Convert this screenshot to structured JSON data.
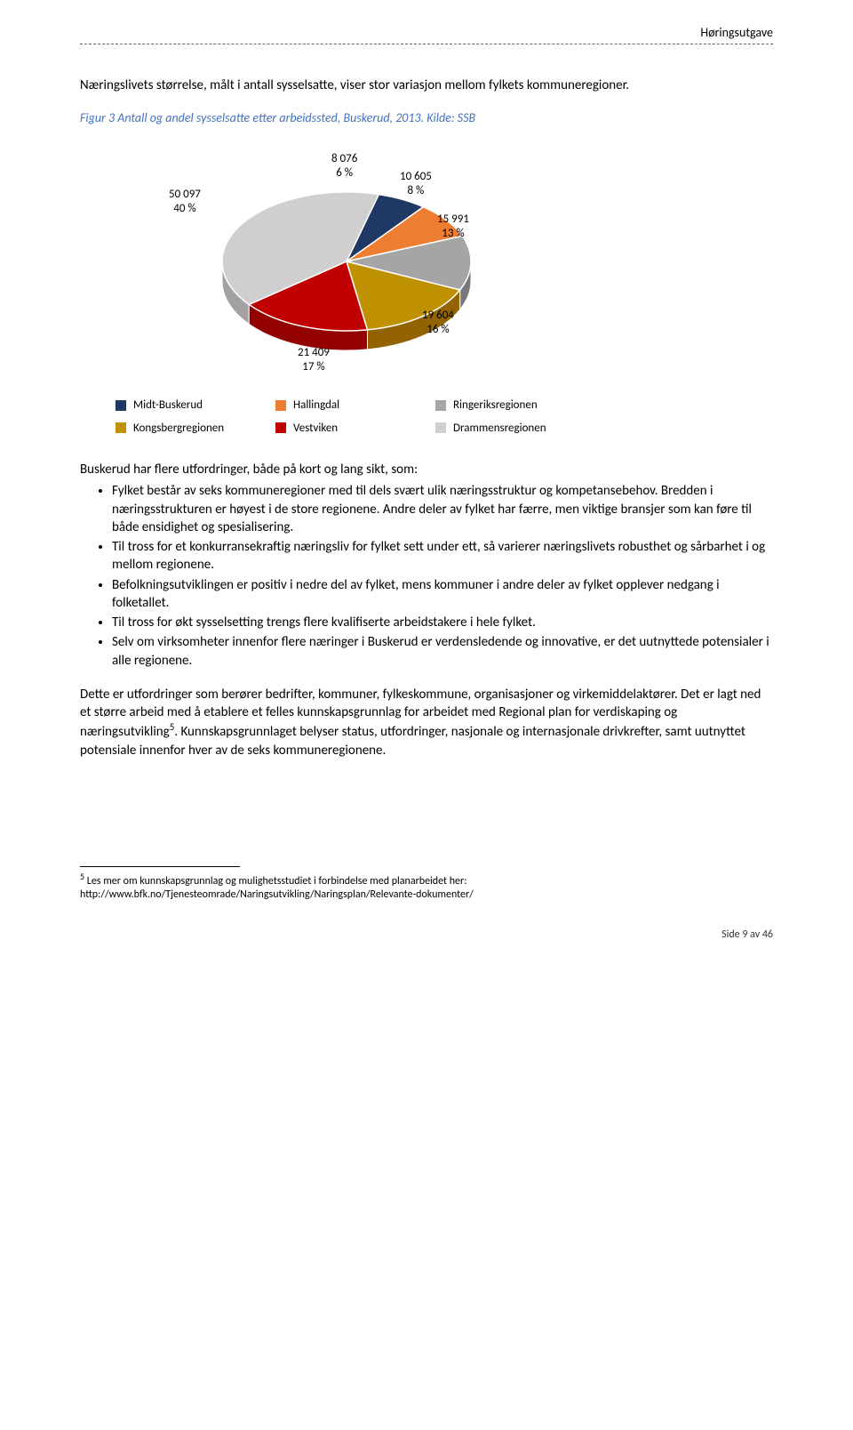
{
  "header": {
    "label": "Høringsutgave"
  },
  "intro": "Næringslivets størrelse, målt i antall sysselsatte, viser stor variasjon mellom fylkets kommuneregioner.",
  "caption": "Figur 3 Antall og andel sysselsatte etter arbeidssted, Buskerud, 2013. Kilde: SSB",
  "chart": {
    "type": "pie",
    "background_color": "#ffffff",
    "label_fontsize": 13,
    "slices": [
      {
        "name": "Midt-Buskerud",
        "value": 8076,
        "pct": 6,
        "color": "#1f3864"
      },
      {
        "name": "Hallingdal",
        "value": 10605,
        "pct": 8,
        "color": "#ed7d31"
      },
      {
        "name": "Ringeriksregionen",
        "value": 15991,
        "pct": 13,
        "color": "#a5a5a5"
      },
      {
        "name": "Kongsbergregionen",
        "value": 19604,
        "pct": 16,
        "color": "#bf9000"
      },
      {
        "name": "Vestviken",
        "value": 21409,
        "pct": 17,
        "color": "#c00000"
      },
      {
        "name": "Drammensregionen",
        "value": 50097,
        "pct": 40,
        "color": "#d0cece"
      }
    ],
    "labels": {
      "l0": "8 076\n6 %",
      "l1": "10 605\n8 %",
      "l2": "15 991\n13 %",
      "l3": "19 604\n16 %",
      "l4": "21 409\n17 %",
      "l5": "50 097\n40 %"
    },
    "legend_order": [
      0,
      1,
      2,
      3,
      4,
      5
    ]
  },
  "subhead": "Buskerud har flere utfordringer, både på kort og lang sikt, som:",
  "bullets": [
    "Fylket består av seks kommuneregioner med til dels svært ulik næringsstruktur og kompetansebehov. Bredden i næringsstrukturen er høyest i de store regionene. Andre deler av fylket har færre, men viktige bransjer som kan føre til både ensidighet og spesialisering.",
    "Til tross for et konkurransekraftig næringsliv for fylket sett under ett, så varierer næringslivets robusthet og sårbarhet i og mellom regionene.",
    "Befolkningsutviklingen er positiv i nedre del av fylket, mens kommuner i andre deler av fylket opplever nedgang i folketallet.",
    "Til tross for økt sysselsetting trengs flere kvalifiserte arbeidstakere i hele fylket.",
    "Selv om virksomheter innenfor flere næringer i Buskerud er verdensledende og innovative, er det uutnyttede potensialer i alle regionene."
  ],
  "para": "Dette er utfordringer som berører bedrifter, kommuner, fylkeskommune, organisasjoner og virkemiddelaktører. Det er lagt ned et større arbeid med å etablere et felles kunnskapsgrunnlag for arbeidet med Regional plan for verdiskaping og næringsutvikling",
  "para_sup": "5",
  "para_tail": ". Kunnskapsgrunnlaget belyser status, utfordringer, nasjonale og internasjonale drivkrefter, samt uutnyttet potensiale innenfor hver av de seks kommuneregionene.",
  "footnote": {
    "sup": "5",
    "text": " Les mer om kunnskapsgrunnlag og mulighetsstudiet i forbindelse med planarbeidet her: http://www.bfk.no/Tjenesteomrade/Naringsutvikling/Naringsplan/Relevante-dokumenter/"
  },
  "pagenum": "Side 9 av 46"
}
